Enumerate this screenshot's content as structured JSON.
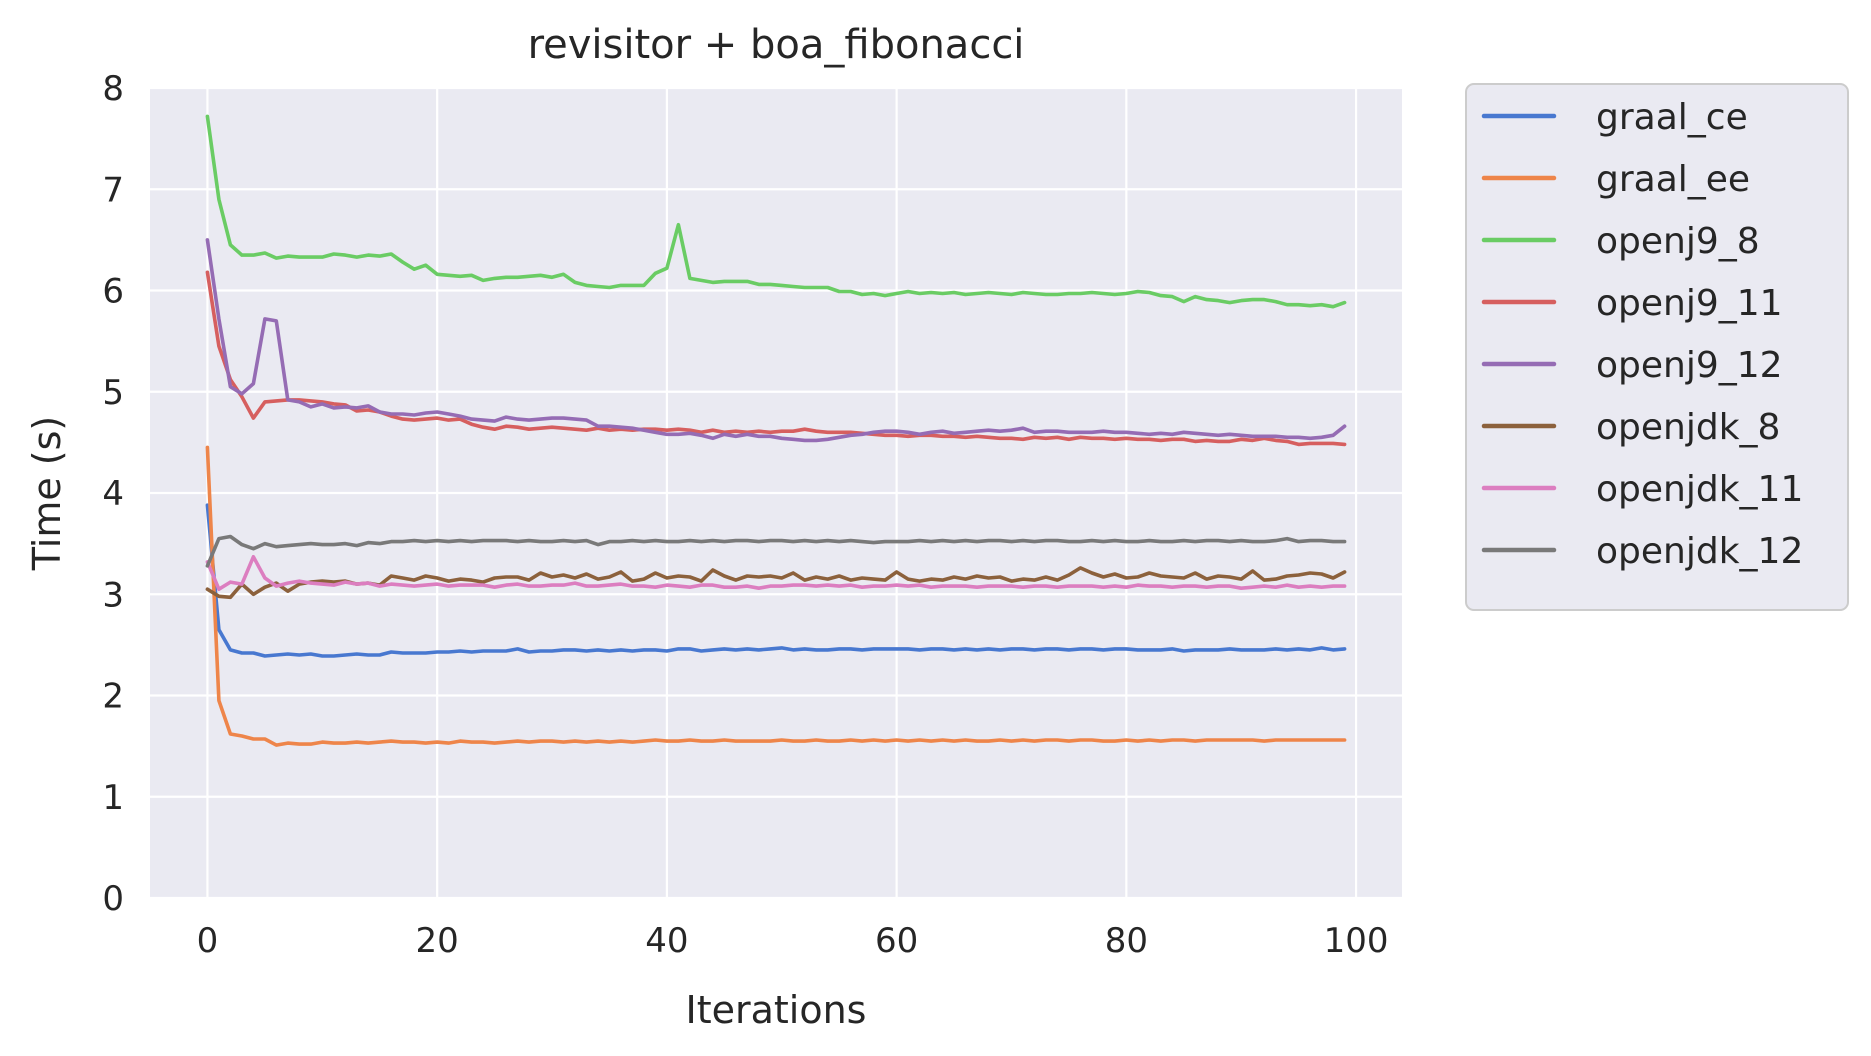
{
  "chart_data": {
    "type": "line",
    "title": "revisitor + boa_fibonacci",
    "xlabel": "Iterations",
    "ylabel": "Time (s)",
    "xlim": [
      -5,
      104
    ],
    "ylim": [
      0,
      8
    ],
    "xticks": [
      0,
      20,
      40,
      60,
      80,
      100
    ],
    "yticks": [
      0,
      1,
      2,
      3,
      4,
      5,
      6,
      7,
      8
    ],
    "grid": true,
    "legend_position": "outside-right-top",
    "colors": {
      "background": "#eaeaf2",
      "grid": "#ffffff",
      "text": "#262626"
    },
    "x": [
      0,
      1,
      2,
      3,
      4,
      5,
      6,
      7,
      8,
      9,
      10,
      11,
      12,
      13,
      14,
      15,
      16,
      17,
      18,
      19,
      20,
      21,
      22,
      23,
      24,
      25,
      26,
      27,
      28,
      29,
      30,
      31,
      32,
      33,
      34,
      35,
      36,
      37,
      38,
      39,
      40,
      41,
      42,
      43,
      44,
      45,
      46,
      47,
      48,
      49,
      50,
      51,
      52,
      53,
      54,
      55,
      56,
      57,
      58,
      59,
      60,
      61,
      62,
      63,
      64,
      65,
      66,
      67,
      68,
      69,
      70,
      71,
      72,
      73,
      74,
      75,
      76,
      77,
      78,
      79,
      80,
      81,
      82,
      83,
      84,
      85,
      86,
      87,
      88,
      89,
      90,
      91,
      92,
      93,
      94,
      95,
      96,
      97,
      98,
      99
    ],
    "series": [
      {
        "name": "graal_ce",
        "color": "#4878d0",
        "values": [
          3.88,
          2.65,
          2.45,
          2.42,
          2.42,
          2.39,
          2.4,
          2.41,
          2.4,
          2.41,
          2.39,
          2.39,
          2.4,
          2.41,
          2.4,
          2.4,
          2.43,
          2.42,
          2.42,
          2.42,
          2.43,
          2.43,
          2.44,
          2.43,
          2.44,
          2.44,
          2.44,
          2.46,
          2.43,
          2.44,
          2.44,
          2.45,
          2.45,
          2.44,
          2.45,
          2.44,
          2.45,
          2.44,
          2.45,
          2.45,
          2.44,
          2.46,
          2.46,
          2.44,
          2.45,
          2.46,
          2.45,
          2.46,
          2.45,
          2.46,
          2.47,
          2.45,
          2.46,
          2.45,
          2.45,
          2.46,
          2.46,
          2.45,
          2.46,
          2.46,
          2.46,
          2.46,
          2.45,
          2.46,
          2.46,
          2.45,
          2.46,
          2.45,
          2.46,
          2.45,
          2.46,
          2.46,
          2.45,
          2.46,
          2.46,
          2.45,
          2.46,
          2.46,
          2.45,
          2.46,
          2.46,
          2.45,
          2.45,
          2.45,
          2.46,
          2.44,
          2.45,
          2.45,
          2.45,
          2.46,
          2.45,
          2.45,
          2.45,
          2.46,
          2.45,
          2.46,
          2.45,
          2.47,
          2.45,
          2.46
        ]
      },
      {
        "name": "graal_ee",
        "color": "#ee854a",
        "values": [
          4.45,
          1.95,
          1.62,
          1.6,
          1.57,
          1.57,
          1.51,
          1.53,
          1.52,
          1.52,
          1.54,
          1.53,
          1.53,
          1.54,
          1.53,
          1.54,
          1.55,
          1.54,
          1.54,
          1.53,
          1.54,
          1.53,
          1.55,
          1.54,
          1.54,
          1.53,
          1.54,
          1.55,
          1.54,
          1.55,
          1.55,
          1.54,
          1.55,
          1.54,
          1.55,
          1.54,
          1.55,
          1.54,
          1.55,
          1.56,
          1.55,
          1.55,
          1.56,
          1.55,
          1.55,
          1.56,
          1.55,
          1.55,
          1.55,
          1.55,
          1.56,
          1.55,
          1.55,
          1.56,
          1.55,
          1.55,
          1.56,
          1.55,
          1.56,
          1.55,
          1.56,
          1.55,
          1.56,
          1.55,
          1.56,
          1.55,
          1.56,
          1.55,
          1.55,
          1.56,
          1.55,
          1.56,
          1.55,
          1.56,
          1.56,
          1.55,
          1.56,
          1.56,
          1.55,
          1.55,
          1.56,
          1.55,
          1.56,
          1.55,
          1.56,
          1.56,
          1.55,
          1.56,
          1.56,
          1.56,
          1.56,
          1.56,
          1.55,
          1.56,
          1.56,
          1.56,
          1.56,
          1.56,
          1.56,
          1.56
        ]
      },
      {
        "name": "openj9_8",
        "color": "#6acc64",
        "values": [
          7.72,
          6.9,
          6.45,
          6.35,
          6.35,
          6.37,
          6.32,
          6.34,
          6.33,
          6.33,
          6.33,
          6.36,
          6.35,
          6.33,
          6.35,
          6.34,
          6.36,
          6.28,
          6.21,
          6.25,
          6.16,
          6.15,
          6.14,
          6.15,
          6.1,
          6.12,
          6.13,
          6.13,
          6.14,
          6.15,
          6.13,
          6.16,
          6.08,
          6.05,
          6.04,
          6.03,
          6.05,
          6.05,
          6.05,
          6.17,
          6.22,
          6.65,
          6.12,
          6.1,
          6.08,
          6.09,
          6.09,
          6.09,
          6.06,
          6.06,
          6.05,
          6.04,
          6.03,
          6.03,
          6.03,
          5.99,
          5.99,
          5.96,
          5.97,
          5.95,
          5.97,
          5.99,
          5.97,
          5.98,
          5.97,
          5.98,
          5.96,
          5.97,
          5.98,
          5.97,
          5.96,
          5.98,
          5.97,
          5.96,
          5.96,
          5.97,
          5.97,
          5.98,
          5.97,
          5.96,
          5.97,
          5.99,
          5.98,
          5.95,
          5.94,
          5.89,
          5.94,
          5.91,
          5.9,
          5.88,
          5.9,
          5.91,
          5.91,
          5.89,
          5.86,
          5.86,
          5.85,
          5.86,
          5.84,
          5.88
        ]
      },
      {
        "name": "openj9_11",
        "color": "#d65f5f",
        "values": [
          6.18,
          5.45,
          5.12,
          4.95,
          4.74,
          4.9,
          4.91,
          4.92,
          4.92,
          4.91,
          4.9,
          4.88,
          4.87,
          4.81,
          4.82,
          4.8,
          4.76,
          4.73,
          4.72,
          4.73,
          4.74,
          4.72,
          4.73,
          4.68,
          4.65,
          4.63,
          4.66,
          4.65,
          4.63,
          4.64,
          4.65,
          4.64,
          4.63,
          4.62,
          4.64,
          4.62,
          4.63,
          4.62,
          4.63,
          4.63,
          4.62,
          4.63,
          4.62,
          4.6,
          4.62,
          4.6,
          4.61,
          4.6,
          4.61,
          4.6,
          4.61,
          4.61,
          4.63,
          4.61,
          4.6,
          4.6,
          4.6,
          4.59,
          4.58,
          4.57,
          4.57,
          4.56,
          4.57,
          4.57,
          4.56,
          4.56,
          4.55,
          4.56,
          4.55,
          4.54,
          4.54,
          4.53,
          4.55,
          4.54,
          4.55,
          4.53,
          4.55,
          4.54,
          4.54,
          4.53,
          4.54,
          4.53,
          4.53,
          4.52,
          4.53,
          4.53,
          4.51,
          4.52,
          4.51,
          4.51,
          4.53,
          4.52,
          4.54,
          4.52,
          4.51,
          4.48,
          4.49,
          4.49,
          4.49,
          4.48
        ]
      },
      {
        "name": "openj9_12",
        "color": "#956cb4",
        "values": [
          6.5,
          5.72,
          5.05,
          4.98,
          5.08,
          5.72,
          5.7,
          4.92,
          4.9,
          4.85,
          4.88,
          4.84,
          4.85,
          4.84,
          4.86,
          4.8,
          4.78,
          4.78,
          4.77,
          4.79,
          4.8,
          4.78,
          4.76,
          4.73,
          4.72,
          4.71,
          4.75,
          4.73,
          4.72,
          4.73,
          4.74,
          4.74,
          4.73,
          4.72,
          4.66,
          4.66,
          4.65,
          4.64,
          4.62,
          4.6,
          4.58,
          4.58,
          4.59,
          4.57,
          4.54,
          4.58,
          4.56,
          4.58,
          4.56,
          4.56,
          4.54,
          4.53,
          4.52,
          4.52,
          4.53,
          4.55,
          4.57,
          4.58,
          4.6,
          4.61,
          4.61,
          4.6,
          4.58,
          4.6,
          4.61,
          4.59,
          4.6,
          4.61,
          4.62,
          4.61,
          4.62,
          4.64,
          4.6,
          4.61,
          4.61,
          4.6,
          4.6,
          4.6,
          4.61,
          4.6,
          4.6,
          4.59,
          4.58,
          4.59,
          4.58,
          4.6,
          4.59,
          4.58,
          4.57,
          4.58,
          4.57,
          4.56,
          4.56,
          4.56,
          4.55,
          4.55,
          4.54,
          4.55,
          4.57,
          4.66
        ]
      },
      {
        "name": "openjdk_8",
        "color": "#8c613c",
        "values": [
          3.05,
          2.98,
          2.97,
          3.1,
          3.0,
          3.07,
          3.11,
          3.03,
          3.1,
          3.12,
          3.13,
          3.12,
          3.13,
          3.1,
          3.11,
          3.09,
          3.18,
          3.16,
          3.14,
          3.18,
          3.16,
          3.13,
          3.15,
          3.14,
          3.12,
          3.16,
          3.17,
          3.17,
          3.14,
          3.21,
          3.17,
          3.19,
          3.16,
          3.2,
          3.15,
          3.17,
          3.22,
          3.13,
          3.15,
          3.21,
          3.16,
          3.18,
          3.17,
          3.13,
          3.24,
          3.18,
          3.14,
          3.18,
          3.17,
          3.18,
          3.16,
          3.21,
          3.14,
          3.17,
          3.15,
          3.18,
          3.14,
          3.16,
          3.15,
          3.14,
          3.22,
          3.15,
          3.13,
          3.15,
          3.14,
          3.17,
          3.15,
          3.18,
          3.16,
          3.17,
          3.13,
          3.15,
          3.14,
          3.17,
          3.14,
          3.19,
          3.26,
          3.21,
          3.17,
          3.2,
          3.16,
          3.17,
          3.21,
          3.18,
          3.17,
          3.16,
          3.21,
          3.15,
          3.18,
          3.17,
          3.15,
          3.23,
          3.14,
          3.15,
          3.18,
          3.19,
          3.21,
          3.2,
          3.16,
          3.22
        ]
      },
      {
        "name": "openjdk_11",
        "color": "#dc7ec0",
        "values": [
          3.32,
          3.05,
          3.12,
          3.1,
          3.37,
          3.16,
          3.08,
          3.11,
          3.13,
          3.11,
          3.1,
          3.09,
          3.12,
          3.1,
          3.11,
          3.08,
          3.1,
          3.09,
          3.08,
          3.09,
          3.1,
          3.08,
          3.09,
          3.09,
          3.09,
          3.07,
          3.09,
          3.1,
          3.08,
          3.08,
          3.09,
          3.09,
          3.11,
          3.08,
          3.08,
          3.09,
          3.1,
          3.08,
          3.08,
          3.07,
          3.09,
          3.08,
          3.07,
          3.09,
          3.09,
          3.07,
          3.07,
          3.08,
          3.06,
          3.08,
          3.08,
          3.09,
          3.09,
          3.08,
          3.09,
          3.08,
          3.09,
          3.07,
          3.08,
          3.08,
          3.09,
          3.08,
          3.09,
          3.07,
          3.08,
          3.08,
          3.08,
          3.07,
          3.08,
          3.08,
          3.08,
          3.07,
          3.08,
          3.08,
          3.07,
          3.08,
          3.08,
          3.08,
          3.07,
          3.08,
          3.07,
          3.09,
          3.08,
          3.08,
          3.07,
          3.08,
          3.08,
          3.07,
          3.08,
          3.08,
          3.06,
          3.07,
          3.08,
          3.07,
          3.09,
          3.07,
          3.08,
          3.07,
          3.08,
          3.08
        ]
      },
      {
        "name": "openjdk_12",
        "color": "#797979",
        "values": [
          3.28,
          3.55,
          3.57,
          3.49,
          3.45,
          3.5,
          3.47,
          3.48,
          3.49,
          3.5,
          3.49,
          3.49,
          3.5,
          3.48,
          3.51,
          3.5,
          3.52,
          3.52,
          3.53,
          3.52,
          3.53,
          3.52,
          3.53,
          3.52,
          3.53,
          3.53,
          3.53,
          3.52,
          3.53,
          3.52,
          3.52,
          3.53,
          3.52,
          3.53,
          3.49,
          3.52,
          3.52,
          3.53,
          3.52,
          3.53,
          3.52,
          3.52,
          3.53,
          3.52,
          3.53,
          3.52,
          3.53,
          3.53,
          3.52,
          3.53,
          3.53,
          3.52,
          3.53,
          3.52,
          3.53,
          3.52,
          3.53,
          3.52,
          3.51,
          3.52,
          3.52,
          3.52,
          3.53,
          3.52,
          3.53,
          3.52,
          3.53,
          3.52,
          3.53,
          3.53,
          3.52,
          3.53,
          3.52,
          3.53,
          3.53,
          3.52,
          3.52,
          3.53,
          3.52,
          3.53,
          3.52,
          3.52,
          3.53,
          3.52,
          3.52,
          3.53,
          3.52,
          3.53,
          3.53,
          3.52,
          3.53,
          3.52,
          3.52,
          3.53,
          3.55,
          3.52,
          3.53,
          3.53,
          3.52,
          3.52
        ]
      }
    ]
  }
}
